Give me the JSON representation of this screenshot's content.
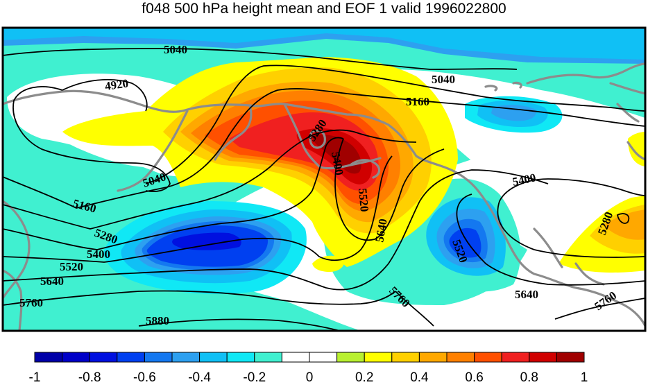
{
  "title": "f048 500 hPa height mean and EOF 1 valid 1996022800",
  "contour_labels": [
    "5040",
    "5040",
    "4920",
    "5160",
    "5280",
    "5400",
    "5520",
    "5640",
    "5040",
    "5160",
    "5280",
    "5400",
    "5520",
    "5640",
    "5760",
    "5880",
    "5760",
    "5640",
    "5520",
    "5400",
    "5280",
    "5760"
  ],
  "colorbar": {
    "tick_labels": [
      "-1",
      "-0.8",
      "-0.6",
      "-0.4",
      "-0.2",
      "0",
      "0.2",
      "0.4",
      "0.6",
      "0.8",
      "1"
    ],
    "colors": [
      "#0000a8",
      "#0000c8",
      "#0010e0",
      "#0040f0",
      "#1478f0",
      "#2da0f0",
      "#10c0f5",
      "#10e8f5",
      "#40f0d0",
      "#ffffff",
      "#ffffff",
      "#b8f030",
      "#ffff00",
      "#ffd000",
      "#ffa800",
      "#ff8000",
      "#ff5000",
      "#f02020",
      "#d00000",
      "#a00000"
    ]
  },
  "colors": {
    "land_coast": "#8c8c8c",
    "contour": "#000000"
  }
}
